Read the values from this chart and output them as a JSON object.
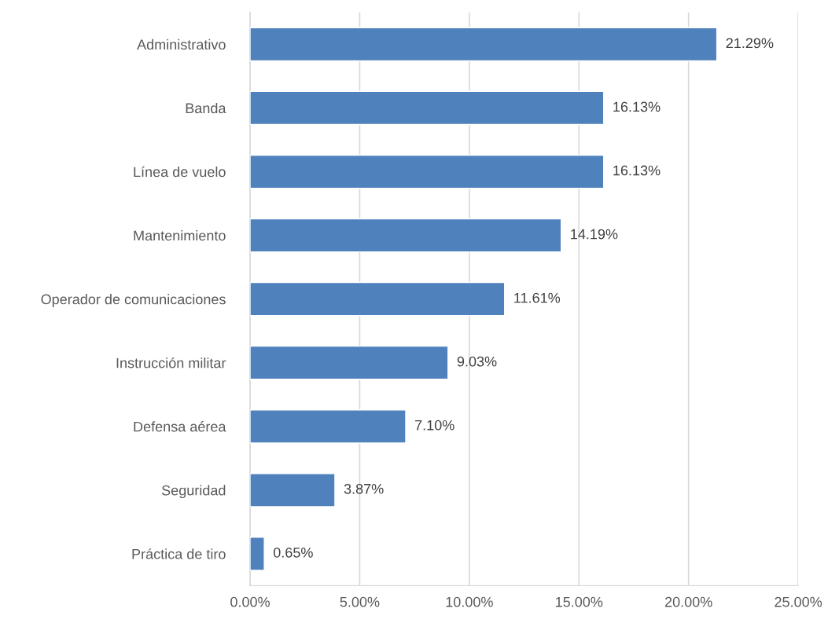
{
  "chart_data": {
    "type": "bar",
    "orientation": "horizontal",
    "categories": [
      "Administrativo",
      "Banda",
      "Línea de vuelo",
      "Mantenimiento",
      "Operador de comunicaciones",
      "Instrucción militar",
      "Defensa aérea",
      "Seguridad",
      "Práctica de tiro"
    ],
    "values": [
      21.29,
      16.13,
      16.13,
      14.19,
      11.61,
      9.03,
      7.1,
      3.87,
      0.65
    ],
    "value_labels": [
      "21.29%",
      "16.13%",
      "16.13%",
      "14.19%",
      "11.61%",
      "9.03%",
      "7.10%",
      "3.87%",
      "0.65%"
    ],
    "color": "#4f81bd",
    "xlim": [
      0,
      25
    ],
    "xticks": [
      {
        "value": 0,
        "label": "0.00%"
      },
      {
        "value": 5,
        "label": "5.00%"
      },
      {
        "value": 10,
        "label": "10.00%"
      },
      {
        "value": 15,
        "label": "15.00%"
      },
      {
        "value": 20,
        "label": "20.00%"
      },
      {
        "value": 25,
        "label": "25.00%"
      }
    ],
    "grid": "x",
    "legend": false
  }
}
